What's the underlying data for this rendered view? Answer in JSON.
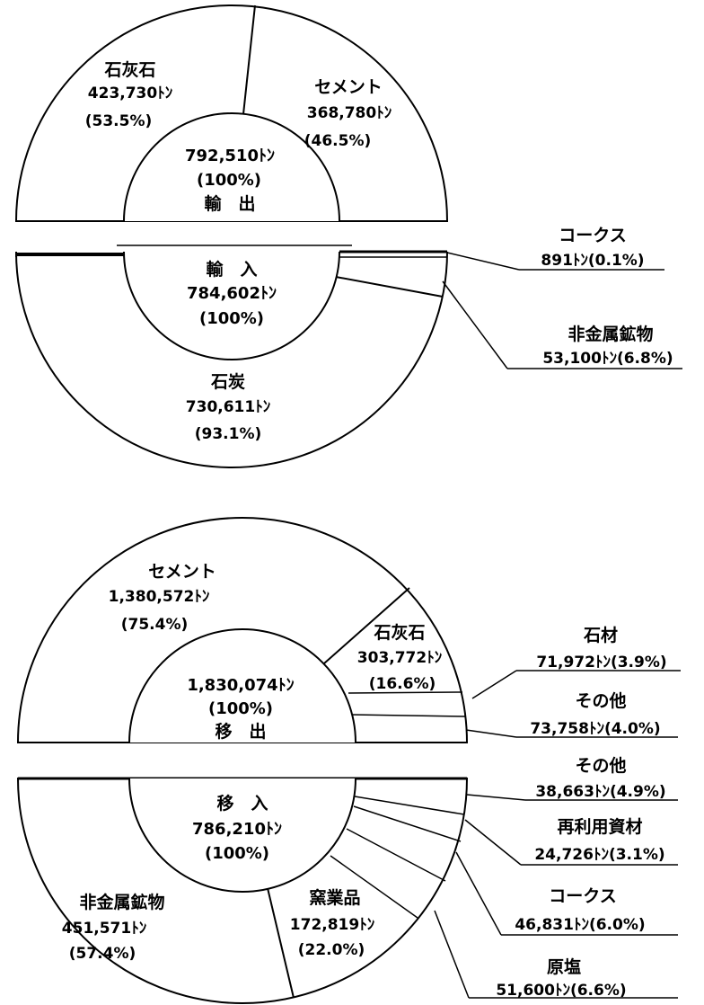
{
  "colors": {
    "stroke": "#000000",
    "fill": "#ffffff",
    "text": "#000000"
  },
  "chart_data": [
    {
      "type": "pie",
      "title": "輸 出",
      "total": "792,510ﾄﾝ",
      "total_pct": "(100%)",
      "total_value": 792510,
      "slices": [
        {
          "name": "石灰石",
          "value": 423730,
          "value_label": "423,730ﾄﾝ",
          "pct_label": "(53.5%)"
        },
        {
          "name": "セメント",
          "value": 368780,
          "value_label": "368,780ﾄﾝ",
          "pct_label": "(46.5%)"
        }
      ]
    },
    {
      "type": "pie",
      "title": "輸 入",
      "total": "784,602ﾄﾝ",
      "total_pct": "(100%)",
      "total_value": 784602,
      "slices": [
        {
          "name": "石炭",
          "value": 730611,
          "value_label": "730,611ﾄﾝ",
          "pct_label": "(93.1%)"
        },
        {
          "name": "非金属鉱物",
          "value": 53100,
          "value_label": "53,100ﾄﾝ(6.8%)"
        },
        {
          "name": "コークス",
          "value": 891,
          "value_label": "891ﾄﾝ(0.1%)"
        }
      ]
    },
    {
      "type": "pie",
      "title": "移 出",
      "total": "1,830,074ﾄﾝ",
      "total_pct": "(100%)",
      "total_value": 1830074,
      "slices": [
        {
          "name": "セメント",
          "value": 1380572,
          "value_label": "1,380,572ﾄﾝ",
          "pct_label": "(75.4%)"
        },
        {
          "name": "石灰石",
          "value": 303772,
          "value_label": "303,772ﾄﾝ",
          "pct_label": "(16.6%)"
        },
        {
          "name": "石材",
          "value": 71972,
          "value_label": "71,972ﾄﾝ(3.9%)"
        },
        {
          "name": "その他",
          "value": 73758,
          "value_label": "73,758ﾄﾝ(4.0%)"
        }
      ]
    },
    {
      "type": "pie",
      "title": "移 入",
      "total": "786,210ﾄﾝ",
      "total_pct": "(100%)",
      "total_value": 786210,
      "slices": [
        {
          "name": "非金属鉱物",
          "value": 451571,
          "value_label": "451,571ﾄﾝ",
          "pct_label": "(57.4%)"
        },
        {
          "name": "窯業品",
          "value": 172819,
          "value_label": "172,819ﾄﾝ",
          "pct_label": "(22.0%)"
        },
        {
          "name": "原塩",
          "value": 51600,
          "value_label": "51,600ﾄﾝ(6.6%)"
        },
        {
          "name": "コークス",
          "value": 46831,
          "value_label": "46,831ﾄﾝ(6.0%)"
        },
        {
          "name": "再利用資材",
          "value": 24726,
          "value_label": "24,726ﾄﾝ(3.1%)"
        },
        {
          "name": "その他",
          "value": 38663,
          "value_label": "38,663ﾄﾝ(4.9%)"
        }
      ]
    }
  ]
}
